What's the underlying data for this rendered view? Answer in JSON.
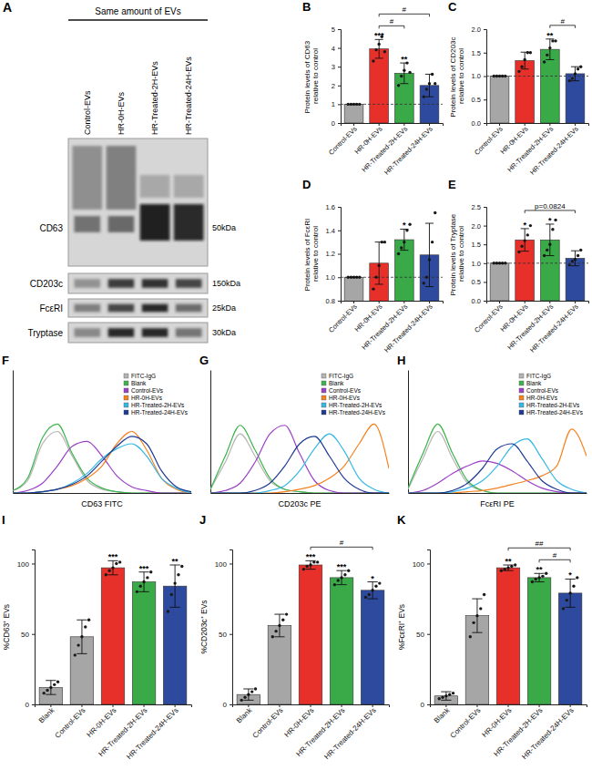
{
  "blot": {
    "label": "A",
    "title": "Same amount of EVs",
    "lanes": [
      "Control-EVs",
      "HR-0H-EVs",
      "HR-Treated-2H-EVs",
      "HR-Treated-24H-EVs"
    ],
    "rows": [
      {
        "protein": "CD63",
        "size": "50kDa"
      },
      {
        "protein": "CD203c",
        "size": "150kDa"
      },
      {
        "protein": "FcεRI",
        "size": "25kDa"
      },
      {
        "protein": "Tryptase",
        "size": "30kDa"
      }
    ]
  },
  "chart_data": [
    {
      "label": "B",
      "type": "bar",
      "y_label": "Protein levels of CD63 relative to control",
      "categories": [
        "Control-EVs",
        "HR-0H-EVs",
        "HR-Treated-2H-EVs",
        "HR-Treated-24H-EVs"
      ],
      "values": [
        1,
        3.95,
        2.65,
        2.0
      ],
      "errors": [
        0,
        0.5,
        0.55,
        0.6
      ],
      "points": [
        [
          1,
          1,
          1,
          1,
          1
        ],
        [
          3.3,
          3.9,
          4.2,
          4.6,
          3.8
        ],
        [
          2.0,
          2.5,
          2.8,
          3.2,
          2.7
        ],
        [
          1.4,
          1.8,
          2.1,
          2.6,
          2.1
        ]
      ],
      "colors": [
        "#a6a6a6",
        "#e8302a",
        "#3aaa49",
        "#2e4a9e"
      ],
      "significance": [
        null,
        "***",
        "**",
        null
      ],
      "comparisons": [
        {
          "text": "#",
          "between": [
            "HR-0H-EVs",
            "HR-Treated-2H-EVs"
          ]
        },
        {
          "text": "#",
          "between": [
            "HR-0H-EVs",
            "HR-Treated-24H-EVs"
          ]
        }
      ],
      "reference": 1,
      "ylim": [
        0,
        5
      ],
      "yticks": [
        0,
        1,
        2,
        3,
        4,
        5
      ]
    },
    {
      "label": "C",
      "type": "bar",
      "y_label": "Protein levels of CD203c relative to control",
      "categories": [
        "Control-EVs",
        "HR-0H-EVs",
        "HR-Treated-2H-EVs",
        "HR-Treated-24H-EVs"
      ],
      "values": [
        1,
        1.33,
        1.57,
        1.05
      ],
      "errors": [
        0,
        0.18,
        0.22,
        0.15
      ],
      "points": [
        [
          1,
          1,
          1,
          1,
          1
        ],
        [
          1.1,
          1.2,
          1.35,
          1.5,
          1.5
        ],
        [
          1.3,
          1.45,
          1.6,
          1.75,
          1.75
        ],
        [
          0.9,
          0.95,
          1.05,
          1.15,
          1.2
        ]
      ],
      "colors": [
        "#a6a6a6",
        "#e8302a",
        "#3aaa49",
        "#2e4a9e"
      ],
      "significance": [
        null,
        null,
        "**",
        null
      ],
      "comparisons": [
        {
          "text": "#",
          "between": [
            "HR-Treated-2H-EVs",
            "HR-Treated-24H-EVs"
          ]
        }
      ],
      "reference": 1,
      "ylim": [
        0,
        2
      ],
      "yticks": [
        {
          "value": 0,
          "label": "0.0"
        },
        0.5,
        {
          "value": 1,
          "label": "1.0"
        },
        1.5,
        {
          "value": 2,
          "label": "2.0"
        }
      ]
    },
    {
      "label": "D",
      "type": "bar",
      "y_label": "Protein levels of FcεRI relative to control",
      "categories": [
        "Control-EVs",
        "HR-0H-EVs",
        "HR-Treated-2H-EVs",
        "HR-Treated-24H-EVs"
      ],
      "values": [
        1,
        1.12,
        1.32,
        1.19
      ],
      "errors": [
        0,
        0.18,
        0.09,
        0.27
      ],
      "points": [
        [
          1,
          1,
          1,
          1,
          1
        ],
        [
          0.9,
          1.0,
          1.1,
          1.3,
          1.3
        ],
        [
          1.2,
          1.25,
          1.3,
          1.4,
          1.45
        ],
        [
          0.95,
          1.0,
          1.15,
          1.3,
          1.55
        ]
      ],
      "colors": [
        "#a6a6a6",
        "#e8302a",
        "#3aaa49",
        "#2e4a9e"
      ],
      "significance": [
        null,
        null,
        "*",
        null
      ],
      "reference": 1,
      "ylim": [
        0.8,
        1.6
      ],
      "yticks": [
        0.8,
        {
          "value": 1,
          "label": "1.0"
        },
        1.2,
        1.4,
        1.6
      ]
    },
    {
      "label": "E",
      "type": "bar",
      "y_label": "Protein levels of Tryptase relative to control",
      "categories": [
        "Control-EVs",
        "HR-0H-EVs",
        "HR-Treated-2H-EVs",
        "HR-Treated-24H-EVs"
      ],
      "values": [
        1,
        1.62,
        1.62,
        1.13
      ],
      "errors": [
        0,
        0.3,
        0.42,
        0.2
      ],
      "points": [
        [
          1,
          1,
          1,
          1,
          1
        ],
        [
          1.3,
          1.45,
          1.6,
          1.75,
          2.0
        ],
        [
          1.2,
          1.35,
          1.5,
          1.9,
          2.15
        ],
        [
          0.95,
          1.05,
          1.1,
          1.2,
          1.35
        ]
      ],
      "colors": [
        "#a6a6a6",
        "#e8302a",
        "#3aaa49",
        "#2e4a9e"
      ],
      "significance": [
        null,
        "*",
        "*",
        null
      ],
      "comparisons": [
        {
          "text": "p=0.0824",
          "between": [
            "HR-0H-EVs",
            "HR-Treated-24H-EVs"
          ]
        }
      ],
      "reference": 1,
      "ylim": [
        0,
        2.5
      ],
      "yticks": [
        {
          "value": 0,
          "label": "0.0"
        },
        0.5,
        {
          "value": 1,
          "label": "1.0"
        },
        1.5,
        {
          "value": 2,
          "label": "2.0"
        },
        2.5
      ]
    },
    {
      "label": "F",
      "type": "line",
      "x_label": "CD63 FITC",
      "x": [
        0,
        8,
        16,
        24,
        32,
        40,
        48,
        56,
        64,
        72,
        80,
        88,
        96
      ],
      "xlim": [
        0,
        96
      ],
      "ylim": [
        0,
        100
      ],
      "tick_labels": false,
      "legend": "upper right",
      "series": [
        {
          "name": "FITC-IgG",
          "color": "#b5b5b5",
          "values": [
            2,
            10,
            40,
            50,
            30,
            10,
            3,
            1,
            0,
            0,
            0,
            0,
            0
          ]
        },
        {
          "name": "Blank",
          "color": "#3cb44b",
          "values": [
            2,
            12,
            45,
            56,
            32,
            12,
            4,
            1,
            0,
            0,
            0,
            0,
            0
          ]
        },
        {
          "name": "Control-EVs",
          "color": "#9b3fc7",
          "values": [
            0,
            2,
            8,
            22,
            38,
            42,
            30,
            14,
            5,
            2,
            0,
            0,
            0
          ]
        },
        {
          "name": "HR-0H-EVs",
          "color": "#f5821f",
          "values": [
            0,
            0,
            1,
            3,
            6,
            12,
            22,
            40,
            50,
            35,
            12,
            3,
            0
          ]
        },
        {
          "name": "HR-Treated-2H-EVs",
          "color": "#36b8e5",
          "values": [
            0,
            0,
            1,
            3,
            8,
            16,
            28,
            36,
            40,
            30,
            12,
            4,
            0
          ]
        },
        {
          "name": "HR-Treated-24H-EVs",
          "color": "#1f3a93",
          "values": [
            0,
            0,
            1,
            3,
            7,
            14,
            26,
            38,
            46,
            40,
            18,
            5,
            1
          ]
        }
      ]
    },
    {
      "label": "G",
      "type": "line",
      "x_label": "CD203c PE",
      "x": [
        0,
        8,
        16,
        24,
        32,
        40,
        48,
        56,
        64,
        72,
        80,
        88,
        96
      ],
      "xlim": [
        0,
        96
      ],
      "ylim": [
        0,
        100
      ],
      "tick_labels": false,
      "legend": "upper right",
      "series": [
        {
          "name": "FITC-IgG",
          "color": "#b5b5b5",
          "values": [
            3,
            25,
            48,
            30,
            10,
            3,
            1,
            0,
            0,
            0,
            0,
            0,
            0
          ]
        },
        {
          "name": "Blank",
          "color": "#3cb44b",
          "values": [
            3,
            30,
            55,
            35,
            12,
            3,
            1,
            0,
            0,
            0,
            0,
            0,
            0
          ]
        },
        {
          "name": "Control-EVs",
          "color": "#9b3fc7",
          "values": [
            0,
            2,
            8,
            25,
            48,
            55,
            32,
            10,
            2,
            0,
            0,
            0,
            0
          ]
        },
        {
          "name": "HR-0H-EVs",
          "color": "#f5821f",
          "values": [
            0,
            0,
            0,
            0,
            0,
            1,
            3,
            6,
            12,
            22,
            40,
            56,
            20
          ]
        },
        {
          "name": "HR-Treated-2H-EVs",
          "color": "#36b8e5",
          "values": [
            0,
            0,
            0,
            0,
            2,
            6,
            18,
            36,
            48,
            34,
            12,
            3,
            0
          ]
        },
        {
          "name": "HR-Treated-24H-EVs",
          "color": "#1f3a93",
          "values": [
            0,
            0,
            0,
            2,
            8,
            22,
            40,
            46,
            30,
            12,
            3,
            0,
            0
          ]
        }
      ]
    },
    {
      "label": "H",
      "type": "line",
      "x_label": "FcεRI PE",
      "x": [
        0,
        8,
        16,
        24,
        32,
        40,
        48,
        56,
        64,
        72,
        80,
        88,
        96
      ],
      "xlim": [
        0,
        96
      ],
      "ylim": [
        0,
        100
      ],
      "tick_labels": false,
      "legend": "upper right",
      "series": [
        {
          "name": "FITC-IgG",
          "color": "#b5b5b5",
          "values": [
            3,
            28,
            50,
            28,
            8,
            2,
            0,
            0,
            0,
            0,
            0,
            0,
            0
          ]
        },
        {
          "name": "Blank",
          "color": "#3cb44b",
          "values": [
            4,
            32,
            56,
            32,
            10,
            2,
            0,
            0,
            0,
            0,
            0,
            0,
            0
          ]
        },
        {
          "name": "Control-EVs",
          "color": "#9b3fc7",
          "values": [
            0,
            2,
            8,
            16,
            22,
            26,
            24,
            18,
            10,
            4,
            1,
            0,
            0
          ]
        },
        {
          "name": "HR-0H-EVs",
          "color": "#f5821f",
          "values": [
            0,
            0,
            0,
            0,
            1,
            2,
            4,
            7,
            10,
            14,
            22,
            52,
            30
          ]
        },
        {
          "name": "HR-Treated-2H-EVs",
          "color": "#36b8e5",
          "values": [
            0,
            0,
            0,
            1,
            4,
            10,
            22,
            38,
            44,
            28,
            10,
            3,
            0
          ]
        },
        {
          "name": "HR-Treated-24H-EVs",
          "color": "#1f3a93",
          "values": [
            0,
            0,
            0,
            2,
            8,
            20,
            36,
            40,
            26,
            10,
            3,
            0,
            0
          ]
        }
      ]
    },
    {
      "label": "I",
      "type": "bar",
      "y_label": "%CD63⁺ EVs",
      "categories": [
        "Blank",
        "Control-EVs",
        "HR-0H-EVs",
        "HR-Treated-2H-EVs",
        "HR-Treated-24H-EVs"
      ],
      "values": [
        12,
        48,
        97,
        87,
        84
      ],
      "errors": [
        5,
        12,
        5,
        7,
        15
      ],
      "points": [
        [
          8,
          10,
          12,
          14,
          16
        ],
        [
          35,
          42,
          48,
          55,
          60
        ],
        [
          92,
          95,
          97,
          100,
          101
        ],
        [
          80,
          84,
          87,
          90,
          94
        ],
        [
          66,
          78,
          86,
          92,
          98
        ]
      ],
      "colors": [
        "#a6a6a6",
        "#a6a6a6",
        "#e8302a",
        "#3aaa49",
        "#2e4a9e"
      ],
      "significance": [
        null,
        null,
        "***",
        "***",
        "**"
      ],
      "ylim": [
        0,
        110
      ],
      "yticks": [
        0,
        50,
        100
      ]
    },
    {
      "label": "J",
      "type": "bar",
      "y_label": "%CD203c⁺ EVs",
      "categories": [
        "Blank",
        "Control-EVs",
        "HR-0H-EVs",
        "HR-Treated-2H-EVs",
        "HR-Treated-24H-EVs"
      ],
      "values": [
        7,
        56,
        99,
        90,
        81
      ],
      "errors": [
        4,
        8,
        3,
        5,
        6
      ],
      "points": [
        [
          3,
          5,
          7,
          9,
          11
        ],
        [
          48,
          52,
          56,
          60,
          64
        ],
        [
          96,
          98,
          99,
          101,
          101
        ],
        [
          85,
          88,
          90,
          92,
          95
        ],
        [
          76,
          78,
          81,
          84,
          86
        ]
      ],
      "colors": [
        "#a6a6a6",
        "#a6a6a6",
        "#e8302a",
        "#3aaa49",
        "#2e4a9e"
      ],
      "significance": [
        null,
        null,
        "***",
        "***",
        "*"
      ],
      "comparisons": [
        {
          "text": "#",
          "between": [
            "HR-0H-EVs",
            "HR-Treated-24H-EVs"
          ]
        }
      ],
      "ylim": [
        0,
        110
      ],
      "yticks": [
        0,
        50,
        100
      ]
    },
    {
      "label": "K",
      "type": "bar",
      "y_label": "%FcεRI⁺ EVs",
      "categories": [
        "Blank",
        "Control-EVs",
        "HR-0H-EVs",
        "HR-Treated-2H-EVs",
        "HR-Treated-24H-EVs"
      ],
      "values": [
        6,
        63,
        97,
        90,
        79
      ],
      "errors": [
        3,
        12,
        2,
        3,
        10
      ],
      "points": [
        [
          4,
          5,
          6,
          7,
          8
        ],
        [
          48,
          58,
          63,
          68,
          78
        ],
        [
          95,
          96,
          97,
          98,
          99
        ],
        [
          87,
          89,
          90,
          91,
          93
        ],
        [
          68,
          74,
          79,
          84,
          90
        ]
      ],
      "colors": [
        "#a6a6a6",
        "#a6a6a6",
        "#e8302a",
        "#3aaa49",
        "#2e4a9e"
      ],
      "significance": [
        null,
        null,
        "**",
        "**",
        "*"
      ],
      "comparisons": [
        {
          "text": "#",
          "between": [
            "HR-Treated-2H-EVs",
            "HR-Treated-24H-EVs"
          ]
        },
        {
          "text": "##",
          "between": [
            "HR-0H-EVs",
            "HR-Treated-24H-EVs"
          ]
        }
      ],
      "ylim": [
        0,
        110
      ],
      "yticks": [
        0,
        50,
        100
      ]
    }
  ]
}
